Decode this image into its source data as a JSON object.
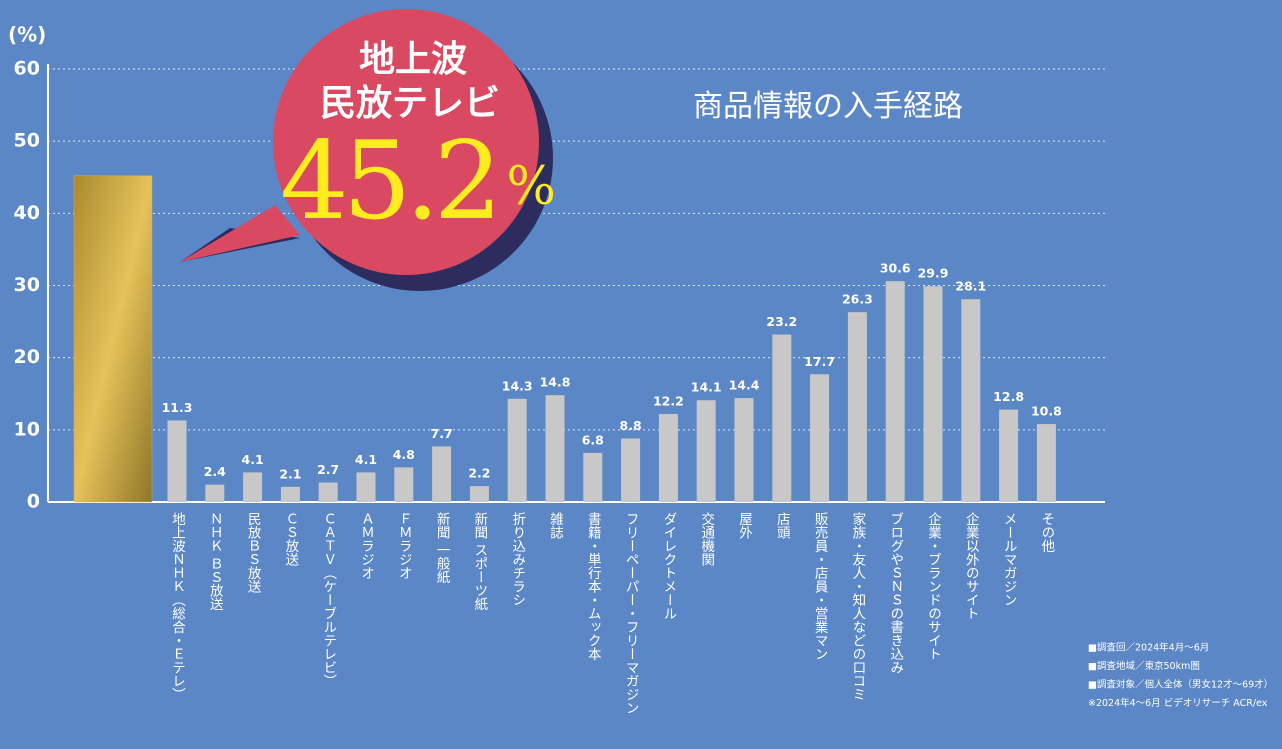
{
  "chart_data": {
    "type": "bar",
    "title": "商品情報の入手経路",
    "y_label": "(%)",
    "categories": [
      null,
      "地上波ＮＨＫ（総合・Ｅテレ）",
      "ＮＨＫ ＢＳ放送",
      "民放ＢＳ放送",
      "ＣＳ放送",
      "ＣＡＴＶ（ケーブルテレビ）",
      "ＡＭラジオ",
      "ＦＭラジオ",
      "新聞 一般紙",
      "新聞 スポーツ紙",
      "折り込みチラシ",
      "雑誌",
      "書籍・単行本・ムック本",
      "フリーペーパー・フリーマガジン",
      "ダイレクトメール",
      "交通機関",
      "屋外",
      "店頭",
      "販売員・店員・営業マン",
      "家族・友人・知人などの口コミ",
      "ブログやＳＮＳの書き込み",
      "企業・ブランドのサイト",
      "企業以外のサイト",
      "メールマガジン",
      "その他"
    ],
    "values": [
      45.2,
      11.3,
      2.4,
      4.1,
      2.1,
      2.7,
      4.1,
      4.8,
      7.7,
      2.2,
      14.3,
      14.8,
      6.8,
      8.8,
      12.2,
      14.1,
      14.4,
      23.2,
      17.7,
      26.3,
      30.6,
      29.9,
      28.1,
      12.8,
      10.8
    ],
    "color": "#c8c8c8",
    "highlight_color": "#d9b24e",
    "callout": {
      "lines": [
        "地上波",
        "民放テレビ"
      ],
      "value_label": "45.2",
      "unit": "%"
    },
    "ylim": [
      0,
      60
    ],
    "yticks": [
      0,
      10,
      20,
      30,
      40,
      50,
      60
    ],
    "grid": true,
    "notes": [
      "■調査回／2024年4月～6月",
      "■調査地域／東京50km圏",
      "■調査対象／個人全体（男女12才～69才）",
      "※2024年4～6月 ビデオリサーチ ACR/ex"
    ]
  }
}
